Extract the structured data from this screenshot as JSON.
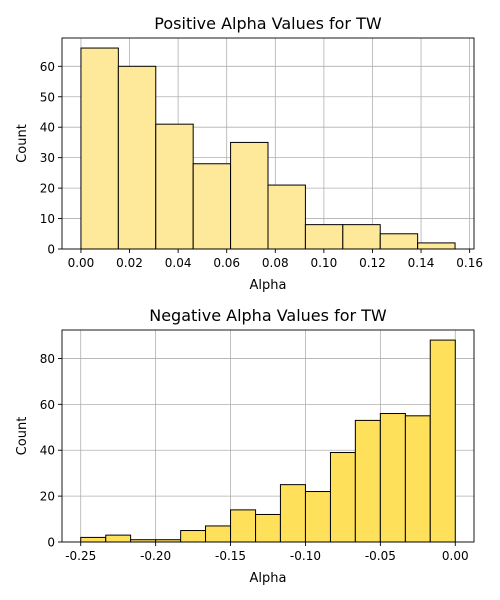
{
  "chart_data": [
    {
      "type": "bar",
      "title": "Positive Alpha Values for TW",
      "xlabel": "Alpha",
      "ylabel": "Count",
      "xlim": [
        -0.0078,
        0.1618
      ],
      "ylim": [
        0,
        69.3
      ],
      "bin_edges": [
        0.0,
        0.0154,
        0.0308,
        0.0462,
        0.0616,
        0.077,
        0.0924,
        0.1078,
        0.1232,
        0.1386,
        0.154
      ],
      "values": [
        66,
        60,
        41,
        28,
        35,
        21,
        8,
        8,
        5,
        2
      ],
      "xticks": [
        0.0,
        0.02,
        0.04,
        0.06,
        0.08,
        0.1,
        0.12,
        0.14,
        0.16
      ],
      "xtick_labels": [
        "0.00",
        "0.02",
        "0.04",
        "0.06",
        "0.08",
        "0.10",
        "0.12",
        "0.14",
        "0.16"
      ],
      "yticks": [
        0,
        10,
        20,
        30,
        40,
        50,
        60
      ],
      "ytick_labels": [
        "0",
        "10",
        "20",
        "30",
        "40",
        "50",
        "60"
      ],
      "bar_color": "#fee899",
      "grid": true
    },
    {
      "type": "bar",
      "title": "Negative Alpha Values for TW",
      "xlabel": "Alpha",
      "ylabel": "Count",
      "xlim": [
        -0.2625,
        0.0125
      ],
      "ylim": [
        0,
        92.4
      ],
      "bin_edges": [
        -0.25,
        -0.2333,
        -0.2167,
        -0.2,
        -0.1833,
        -0.1667,
        -0.15,
        -0.1333,
        -0.1167,
        -0.1,
        -0.0833,
        -0.0667,
        -0.05,
        -0.0333,
        -0.0167,
        0.0
      ],
      "values": [
        2,
        3,
        1,
        1,
        5,
        7,
        14,
        12,
        25,
        22,
        39,
        53,
        56,
        55,
        88
      ],
      "xticks": [
        -0.25,
        -0.2,
        -0.15,
        -0.1,
        -0.05,
        0.0
      ],
      "xtick_labels": [
        "-0.25",
        "-0.20",
        "-0.15",
        "-0.10",
        "-0.05",
        "0.00"
      ],
      "yticks": [
        0,
        20,
        40,
        60,
        80
      ],
      "ytick_labels": [
        "0",
        "20",
        "40",
        "60",
        "80"
      ],
      "bar_color": "#ffe05a",
      "grid": true
    }
  ]
}
